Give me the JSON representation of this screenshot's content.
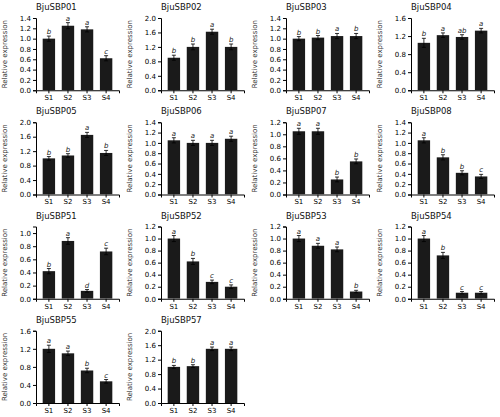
{
  "chart_data": [
    {
      "type": "bar",
      "title": "BjuSBP01",
      "y_label": "Relative expression",
      "categories": [
        "S1",
        "S2",
        "S3",
        "S4"
      ],
      "values": [
        1.0,
        1.25,
        1.18,
        0.62
      ],
      "errors": [
        0.05,
        0.06,
        0.05,
        0.05
      ],
      "annotations": [
        "b",
        "a",
        "a",
        "c"
      ],
      "color": "#1a1a1a",
      "ylim": [
        0.0,
        1.4
      ],
      "yticks": [
        {
          "value": 0,
          "label": "0.0"
        },
        0.2,
        0.4,
        0.6,
        0.8,
        {
          "value": 1,
          "label": "1.0"
        },
        1.2,
        1.4
      ]
    },
    {
      "type": "bar",
      "title": "BjuSBP02",
      "y_label": "Relative expression",
      "categories": [
        "S1",
        "S2",
        "S3",
        "S4"
      ],
      "values": [
        0.9,
        1.2,
        1.62,
        1.2
      ],
      "errors": [
        0.07,
        0.08,
        0.07,
        0.08
      ],
      "annotations": [
        "b",
        "b",
        "a",
        "b"
      ],
      "color": "#1a1a1a",
      "ylim": [
        0.0,
        2.0
      ],
      "yticks": [
        {
          "value": 0,
          "label": "0.0"
        },
        0.4,
        0.8,
        1.2,
        1.6,
        {
          "value": 2,
          "label": "2.0"
        }
      ]
    },
    {
      "type": "bar",
      "title": "BjuSBP03",
      "y_label": "Relative expression",
      "categories": [
        "S1",
        "S2",
        "S3",
        "S4"
      ],
      "values": [
        1.0,
        1.02,
        1.05,
        1.05
      ],
      "errors": [
        0.04,
        0.04,
        0.05,
        0.05
      ],
      "annotations": [
        "b",
        "b",
        "a",
        "b"
      ],
      "color": "#1a1a1a",
      "ylim": [
        0.0,
        1.4
      ],
      "yticks": [
        {
          "value": 0,
          "label": "0.0"
        },
        0.2,
        0.4,
        0.6,
        0.8,
        {
          "value": 1,
          "label": "1.0"
        },
        1.2,
        1.4
      ]
    },
    {
      "type": "bar",
      "title": "BjuSBP04",
      "y_label": "Relative expression",
      "categories": [
        "S1",
        "S2",
        "S3",
        "S4"
      ],
      "values": [
        1.05,
        1.22,
        1.18,
        1.32
      ],
      "errors": [
        0.1,
        0.05,
        0.05,
        0.05
      ],
      "annotations": [
        "b",
        "a",
        "ab",
        "a"
      ],
      "color": "#1a1a1a",
      "ylim": [
        0.0,
        1.6
      ],
      "yticks": [
        {
          "value": 0,
          "label": "0.0"
        },
        0.4,
        0.8,
        1.2,
        1.6
      ]
    },
    {
      "type": "bar",
      "title": "BjuSBP05",
      "y_label": "Relative expression",
      "categories": [
        "S1",
        "S2",
        "S3",
        "S4"
      ],
      "values": [
        1.0,
        1.08,
        1.65,
        1.15
      ],
      "errors": [
        0.05,
        0.05,
        0.07,
        0.07
      ],
      "annotations": [
        "b",
        "b",
        "a",
        "b"
      ],
      "color": "#1a1a1a",
      "ylim": [
        0.0,
        2.0
      ],
      "yticks": [
        {
          "value": 0,
          "label": "0.0"
        },
        0.4,
        0.8,
        1.2,
        1.6,
        {
          "value": 2,
          "label": "2.0"
        }
      ]
    },
    {
      "type": "bar",
      "title": "BjuSBP06",
      "y_label": "Relative expression",
      "categories": [
        "S1",
        "S2",
        "S3",
        "S4"
      ],
      "values": [
        1.05,
        1.0,
        1.0,
        1.08
      ],
      "errors": [
        0.05,
        0.05,
        0.05,
        0.05
      ],
      "annotations": [
        "a",
        "a",
        "a",
        "a"
      ],
      "color": "#1a1a1a",
      "ylim": [
        0.0,
        1.4
      ],
      "yticks": [
        {
          "value": 0,
          "label": "0.0"
        },
        0.2,
        0.4,
        0.6,
        0.8,
        {
          "value": 1,
          "label": "1.0"
        },
        1.2,
        1.4
      ]
    },
    {
      "type": "bar",
      "title": "BjuSBP07",
      "y_label": "Relative expression",
      "categories": [
        "S1",
        "S2",
        "S3",
        "S4"
      ],
      "values": [
        1.05,
        1.05,
        0.25,
        0.55
      ],
      "errors": [
        0.05,
        0.05,
        0.04,
        0.04
      ],
      "annotations": [
        "a",
        "a",
        "b",
        "b"
      ],
      "color": "#1a1a1a",
      "ylim": [
        0.0,
        1.2
      ],
      "yticks": [
        {
          "value": 0,
          "label": "0.0"
        },
        0.2,
        0.4,
        0.6,
        0.8,
        {
          "value": 1,
          "label": "1.0"
        },
        1.2
      ]
    },
    {
      "type": "bar",
      "title": "BjuSBP08",
      "y_label": "Relative expression",
      "categories": [
        "S1",
        "S2",
        "S3",
        "S4"
      ],
      "values": [
        1.05,
        0.72,
        0.42,
        0.35
      ],
      "errors": [
        0.05,
        0.05,
        0.04,
        0.04
      ],
      "annotations": [
        "a",
        "b",
        "b",
        "c"
      ],
      "color": "#1a1a1a",
      "ylim": [
        0.0,
        1.4
      ],
      "yticks": [
        {
          "value": 0,
          "label": "0.0"
        },
        0.2,
        0.4,
        0.6,
        0.8,
        {
          "value": 1,
          "label": "1.0"
        },
        1.2,
        1.4
      ]
    },
    {
      "type": "bar",
      "title": "BjuSBP51",
      "y_label": "Relative expression",
      "categories": [
        "S1",
        "S2",
        "S3",
        "S4"
      ],
      "values": [
        0.42,
        0.88,
        0.12,
        0.72
      ],
      "errors": [
        0.04,
        0.05,
        0.02,
        0.05
      ],
      "annotations": [
        "b",
        "a",
        "d",
        "c"
      ],
      "color": "#1a1a1a",
      "ylim": [
        0.0,
        1.1
      ],
      "yticks": [
        {
          "value": 0,
          "label": "0.0"
        },
        0.2,
        0.4,
        0.6,
        0.8,
        {
          "value": 1,
          "label": "1.0"
        }
      ]
    },
    {
      "type": "bar",
      "title": "BjuSBP52",
      "y_label": "Relative expression",
      "categories": [
        "S1",
        "S2",
        "S3",
        "S4"
      ],
      "values": [
        1.0,
        0.62,
        0.28,
        0.2
      ],
      "errors": [
        0.05,
        0.05,
        0.03,
        0.03
      ],
      "annotations": [
        "a",
        "b",
        "c",
        "c"
      ],
      "color": "#1a1a1a",
      "ylim": [
        0.0,
        1.2
      ],
      "yticks": [
        {
          "value": 0,
          "label": "0.0"
        },
        0.2,
        0.4,
        0.6,
        0.8,
        {
          "value": 1,
          "label": "1.0"
        },
        1.2
      ]
    },
    {
      "type": "bar",
      "title": "BjuSBP53",
      "y_label": "Relative expression",
      "categories": [
        "S1",
        "S2",
        "S3",
        "S4"
      ],
      "values": [
        1.0,
        0.88,
        0.82,
        0.12
      ],
      "errors": [
        0.05,
        0.04,
        0.04,
        0.02
      ],
      "annotations": [
        "a",
        "a",
        "a",
        "b"
      ],
      "color": "#1a1a1a",
      "ylim": [
        0.0,
        1.2
      ],
      "yticks": [
        {
          "value": 0,
          "label": "0.0"
        },
        0.2,
        0.4,
        0.6,
        0.8,
        {
          "value": 1,
          "label": "1.0"
        },
        1.2
      ]
    },
    {
      "type": "bar",
      "title": "BjuSBP54",
      "y_label": "Relative expression",
      "categories": [
        "S1",
        "S2",
        "S3",
        "S4"
      ],
      "values": [
        1.0,
        0.72,
        0.1,
        0.1
      ],
      "errors": [
        0.05,
        0.05,
        0.02,
        0.02
      ],
      "annotations": [
        "a",
        "b",
        "c",
        "c"
      ],
      "color": "#1a1a1a",
      "ylim": [
        0.0,
        1.2
      ],
      "yticks": [
        {
          "value": 0,
          "label": "0.0"
        },
        0.2,
        0.4,
        0.6,
        0.8,
        {
          "value": 1,
          "label": "1.0"
        },
        1.2
      ]
    },
    {
      "type": "bar",
      "title": "BjuSBP55",
      "y_label": "Relative expression",
      "categories": [
        "S1",
        "S2",
        "S3",
        "S4"
      ],
      "values": [
        1.2,
        1.1,
        0.72,
        0.48
      ],
      "errors": [
        0.08,
        0.05,
        0.05,
        0.04
      ],
      "annotations": [
        "a",
        "a",
        "b",
        "c"
      ],
      "color": "#1a1a1a",
      "ylim": [
        0.0,
        1.6
      ],
      "yticks": [
        {
          "value": 0,
          "label": "0.0"
        },
        0.4,
        0.8,
        1.2,
        1.6
      ]
    },
    {
      "type": "bar",
      "title": "BjuSBP57",
      "y_label": "Relative expression",
      "categories": [
        "S1",
        "S2",
        "S3",
        "S4"
      ],
      "values": [
        1.0,
        1.02,
        1.5,
        1.5
      ],
      "errors": [
        0.04,
        0.04,
        0.05,
        0.05
      ],
      "annotations": [
        "b",
        "b",
        "a",
        "a"
      ],
      "color": "#1a1a1a",
      "ylim": [
        0.0,
        2.0
      ],
      "yticks": [
        {
          "value": 0,
          "label": "0.0"
        },
        0.4,
        0.8,
        1.2,
        1.6,
        {
          "value": 2,
          "label": "2.0"
        }
      ]
    }
  ]
}
